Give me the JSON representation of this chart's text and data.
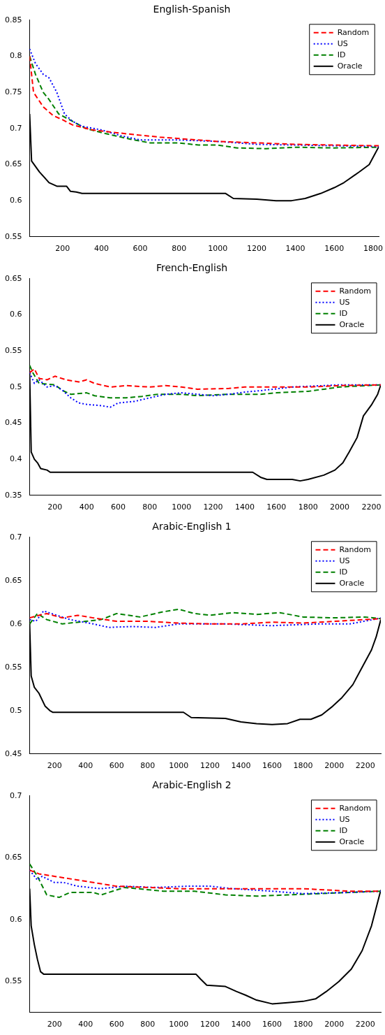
{
  "chart_data": [
    {
      "type": "line",
      "title": "English-Spanish",
      "xlim": [
        30,
        1830
      ],
      "xticks": [
        200,
        400,
        600,
        800,
        1000,
        1200,
        1400,
        1600,
        1800
      ],
      "ylim": [
        0.55,
        0.85
      ],
      "yticks": [
        0.55,
        0.6,
        0.65,
        0.7,
        0.75,
        0.8,
        0.85
      ],
      "legend": "top right",
      "grid": false,
      "marker": "none",
      "series": [
        {
          "name": "Random",
          "color": "#ff0000",
          "line_style": "dashed",
          "x": [
            30,
            50,
            100,
            150,
            200,
            250,
            350,
            450,
            550,
            700,
            850,
            1000,
            1200,
            1400,
            1600,
            1830
          ],
          "values": [
            0.8,
            0.75,
            0.73,
            0.718,
            0.712,
            0.705,
            0.698,
            0.695,
            0.692,
            0.688,
            0.685,
            0.682,
            0.68,
            0.678,
            0.677,
            0.676
          ]
        },
        {
          "name": "US",
          "color": "#0000ff",
          "line_style": "dotted",
          "x": [
            30,
            60,
            100,
            130,
            170,
            210,
            250,
            300,
            400,
            500,
            600,
            800,
            1000,
            1200,
            1400,
            1600,
            1830
          ],
          "values": [
            0.81,
            0.79,
            0.775,
            0.77,
            0.75,
            0.72,
            0.71,
            0.703,
            0.698,
            0.69,
            0.684,
            0.684,
            0.682,
            0.678,
            0.677,
            0.676,
            0.675
          ]
        },
        {
          "name": "ID",
          "color": "#008000",
          "line_style": "dashed",
          "x": [
            30,
            60,
            100,
            130,
            180,
            250,
            320,
            420,
            550,
            650,
            800,
            900,
            1000,
            1100,
            1250,
            1400,
            1600,
            1830
          ],
          "values": [
            0.8,
            0.775,
            0.75,
            0.74,
            0.72,
            0.71,
            0.7,
            0.693,
            0.685,
            0.68,
            0.68,
            0.677,
            0.677,
            0.673,
            0.672,
            0.674,
            0.673,
            0.674
          ]
        },
        {
          "name": "Oracle",
          "color": "#000000",
          "line_style": "solid",
          "x": [
            30,
            40,
            80,
            130,
            170,
            220,
            240,
            270,
            300,
            1040,
            1080,
            1200,
            1300,
            1380,
            1450,
            1530,
            1600,
            1650,
            1730,
            1780,
            1810,
            1830
          ],
          "values": [
            0.72,
            0.655,
            0.64,
            0.625,
            0.62,
            0.62,
            0.613,
            0.612,
            0.61,
            0.61,
            0.603,
            0.602,
            0.6,
            0.6,
            0.603,
            0.61,
            0.618,
            0.625,
            0.64,
            0.65,
            0.665,
            0.675
          ]
        }
      ]
    },
    {
      "type": "line",
      "title": "French-English",
      "xlim": [
        40,
        2260
      ],
      "xticks": [
        200,
        400,
        600,
        800,
        1000,
        1200,
        1400,
        1600,
        1800,
        2000,
        2200
      ],
      "ylim": [
        0.35,
        0.65
      ],
      "yticks": [
        0.35,
        0.4,
        0.45,
        0.5,
        0.55,
        0.6,
        0.65
      ],
      "legend": "top right",
      "grid": false,
      "marker": "none",
      "series": [
        {
          "name": "Random",
          "color": "#ff0000",
          "line_style": "dashed",
          "x": [
            40,
            70,
            100,
            150,
            200,
            270,
            350,
            400,
            450,
            550,
            650,
            800,
            900,
            1000,
            1100,
            1300,
            1400,
            1600,
            1800,
            2000,
            2260
          ],
          "values": [
            0.52,
            0.525,
            0.512,
            0.51,
            0.515,
            0.51,
            0.507,
            0.51,
            0.505,
            0.5,
            0.502,
            0.5,
            0.502,
            0.5,
            0.497,
            0.498,
            0.5,
            0.5,
            0.5,
            0.502,
            0.503
          ]
        },
        {
          "name": "US",
          "color": "#0000ff",
          "line_style": "dotted",
          "x": [
            40,
            70,
            100,
            150,
            200,
            250,
            300,
            350,
            400,
            500,
            550,
            600,
            700,
            800,
            900,
            1000,
            1100,
            1200,
            1300,
            1400,
            1500,
            1700,
            2000,
            2260
          ],
          "values": [
            0.52,
            0.505,
            0.51,
            0.5,
            0.502,
            0.495,
            0.485,
            0.478,
            0.476,
            0.474,
            0.472,
            0.478,
            0.48,
            0.485,
            0.49,
            0.492,
            0.49,
            0.488,
            0.49,
            0.493,
            0.495,
            0.5,
            0.503,
            0.503
          ]
        },
        {
          "name": "ID",
          "color": "#008000",
          "line_style": "dashed",
          "x": [
            40,
            60,
            100,
            200,
            250,
            300,
            400,
            450,
            550,
            650,
            750,
            850,
            1000,
            1100,
            1300,
            1400,
            1500,
            1600,
            1800,
            1900,
            2000,
            2260
          ],
          "values": [
            0.53,
            0.52,
            0.505,
            0.503,
            0.495,
            0.49,
            0.492,
            0.488,
            0.485,
            0.485,
            0.487,
            0.49,
            0.49,
            0.488,
            0.49,
            0.49,
            0.49,
            0.492,
            0.494,
            0.497,
            0.5,
            0.503
          ]
        },
        {
          "name": "Oracle",
          "color": "#000000",
          "line_style": "solid",
          "x": [
            40,
            50,
            70,
            90,
            110,
            150,
            170,
            1450,
            1500,
            1540,
            1700,
            1750,
            1800,
            1900,
            1970,
            2020,
            2060,
            2110,
            2150,
            2200,
            2240,
            2260
          ],
          "values": [
            0.52,
            0.41,
            0.4,
            0.395,
            0.387,
            0.385,
            0.382,
            0.382,
            0.375,
            0.372,
            0.372,
            0.37,
            0.372,
            0.378,
            0.385,
            0.395,
            0.41,
            0.43,
            0.46,
            0.475,
            0.49,
            0.503
          ]
        }
      ]
    },
    {
      "type": "line",
      "title": "Arabic-English 1",
      "xlim": [
        40,
        2300
      ],
      "xticks": [
        200,
        400,
        600,
        800,
        1000,
        1200,
        1400,
        1600,
        1800,
        2000,
        2200
      ],
      "ylim": [
        0.45,
        0.7
      ],
      "yticks": [
        0.45,
        0.5,
        0.55,
        0.6,
        0.65,
        0.7
      ],
      "legend": "top right",
      "grid": false,
      "marker": "none",
      "series": [
        {
          "name": "Random",
          "color": "#ff0000",
          "line_style": "dashed",
          "x": [
            40,
            100,
            150,
            250,
            350,
            450,
            600,
            800,
            1000,
            1200,
            1400,
            1600,
            1800,
            2000,
            2200,
            2300
          ],
          "values": [
            0.607,
            0.61,
            0.612,
            0.607,
            0.61,
            0.607,
            0.603,
            0.603,
            0.601,
            0.6,
            0.6,
            0.602,
            0.601,
            0.603,
            0.605,
            0.606
          ]
        },
        {
          "name": "US",
          "color": "#0000ff",
          "line_style": "dotted",
          "x": [
            40,
            80,
            130,
            180,
            300,
            450,
            550,
            700,
            850,
            1000,
            1300,
            1600,
            1900,
            2100,
            2250,
            2300
          ],
          "values": [
            0.605,
            0.603,
            0.615,
            0.612,
            0.605,
            0.6,
            0.596,
            0.597,
            0.596,
            0.6,
            0.6,
            0.598,
            0.6,
            0.6,
            0.605,
            0.607
          ]
        },
        {
          "name": "ID",
          "color": "#008000",
          "line_style": "dashed",
          "x": [
            40,
            90,
            150,
            250,
            400,
            500,
            600,
            750,
            900,
            1000,
            1100,
            1200,
            1350,
            1500,
            1650,
            1800,
            2000,
            2200,
            2300
          ],
          "values": [
            0.6,
            0.612,
            0.605,
            0.6,
            0.603,
            0.605,
            0.612,
            0.608,
            0.614,
            0.617,
            0.612,
            0.61,
            0.613,
            0.611,
            0.613,
            0.608,
            0.607,
            0.608,
            0.606
          ]
        },
        {
          "name": "Oracle",
          "color": "#000000",
          "line_style": "solid",
          "x": [
            40,
            50,
            70,
            100,
            140,
            170,
            190,
            1030,
            1080,
            1300,
            1400,
            1500,
            1600,
            1700,
            1780,
            1850,
            1920,
            1990,
            2050,
            2120,
            2180,
            2240,
            2270,
            2300
          ],
          "values": [
            0.6,
            0.54,
            0.527,
            0.52,
            0.505,
            0.5,
            0.498,
            0.498,
            0.492,
            0.491,
            0.487,
            0.485,
            0.484,
            0.485,
            0.49,
            0.49,
            0.495,
            0.505,
            0.515,
            0.53,
            0.55,
            0.57,
            0.585,
            0.605
          ]
        }
      ]
    },
    {
      "type": "line",
      "title": "Arabic-English 2",
      "xlim": [
        40,
        2300
      ],
      "xticks": [
        200,
        400,
        600,
        800,
        1000,
        1200,
        1400,
        1600,
        1800,
        2000,
        2200
      ],
      "ylim": [
        0.525,
        0.7
      ],
      "yticks": [
        0.55,
        0.6,
        0.65,
        0.7
      ],
      "legend": "top right",
      "grid": false,
      "marker": "none",
      "series": [
        {
          "name": "Random",
          "color": "#ff0000",
          "line_style": "dashed",
          "x": [
            40,
            100,
            200,
            350,
            450,
            600,
            800,
            1000,
            1200,
            1500,
            1800,
            2100,
            2300
          ],
          "values": [
            0.64,
            0.637,
            0.635,
            0.632,
            0.63,
            0.627,
            0.626,
            0.625,
            0.625,
            0.625,
            0.625,
            0.623,
            0.623
          ]
        },
        {
          "name": "US",
          "color": "#0000ff",
          "line_style": "dotted",
          "x": [
            40,
            90,
            120,
            200,
            260,
            350,
            500,
            650,
            850,
            1050,
            1200,
            1350,
            1600,
            1800,
            2100,
            2300
          ],
          "values": [
            0.64,
            0.632,
            0.635,
            0.63,
            0.63,
            0.627,
            0.625,
            0.627,
            0.626,
            0.627,
            0.627,
            0.625,
            0.623,
            0.621,
            0.622,
            0.623
          ]
        },
        {
          "name": "ID",
          "color": "#008000",
          "line_style": "dashed",
          "x": [
            40,
            90,
            150,
            230,
            300,
            450,
            500,
            650,
            900,
            1100,
            1300,
            1500,
            1700,
            1900,
            2100,
            2300
          ],
          "values": [
            0.645,
            0.635,
            0.62,
            0.618,
            0.622,
            0.622,
            0.62,
            0.626,
            0.623,
            0.623,
            0.62,
            0.619,
            0.62,
            0.621,
            0.622,
            0.623
          ]
        },
        {
          "name": "Oracle",
          "color": "#000000",
          "line_style": "solid",
          "x": [
            40,
            50,
            70,
            90,
            110,
            130,
            1110,
            1140,
            1180,
            1300,
            1370,
            1430,
            1500,
            1600,
            1700,
            1800,
            1880,
            1950,
            2030,
            2110,
            2180,
            2240,
            2300
          ],
          "values": [
            0.625,
            0.595,
            0.58,
            0.568,
            0.558,
            0.556,
            0.556,
            0.552,
            0.547,
            0.546,
            0.542,
            0.539,
            0.535,
            0.532,
            0.533,
            0.534,
            0.536,
            0.542,
            0.55,
            0.56,
            0.575,
            0.595,
            0.624
          ]
        }
      ]
    }
  ]
}
